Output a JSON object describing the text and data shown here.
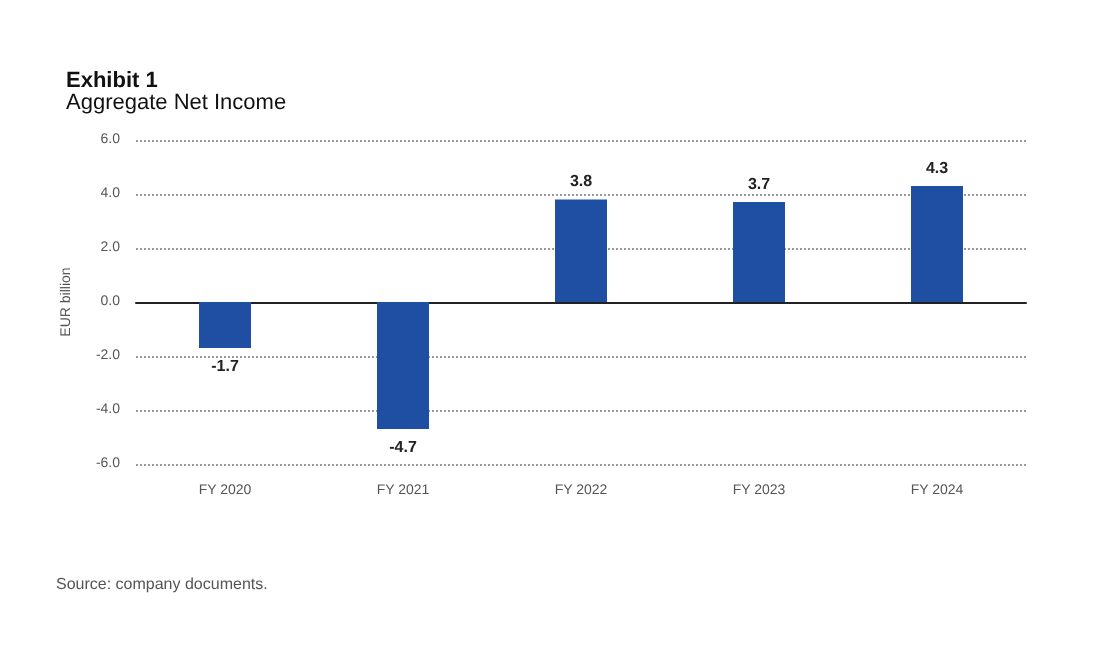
{
  "chart_data": {
    "type": "bar",
    "title": "Exhibit 1",
    "subtitle": "Aggregate Net Income",
    "ylabel": "EUR billion",
    "categories": [
      "FY 2020",
      "FY 2021",
      "FY 2022",
      "FY 2023",
      "FY 2024"
    ],
    "values": [
      -1.7,
      -4.7,
      3.8,
      3.7,
      4.3
    ],
    "color": "#1f4fa3",
    "ylim": [
      -6,
      6
    ],
    "yticks": [
      {
        "value": -6,
        "label": "-6.0"
      },
      {
        "value": -4,
        "label": "-4.0"
      },
      {
        "value": -2,
        "label": "-2.0"
      },
      {
        "value": 0,
        "label": "0.0"
      },
      {
        "value": 2,
        "label": "2.0"
      },
      {
        "value": 4,
        "label": "4.0"
      },
      {
        "value": 6,
        "label": "6.0"
      }
    ],
    "grid": "y",
    "data_labels": true,
    "annotations": [
      "Source: company documents."
    ]
  }
}
